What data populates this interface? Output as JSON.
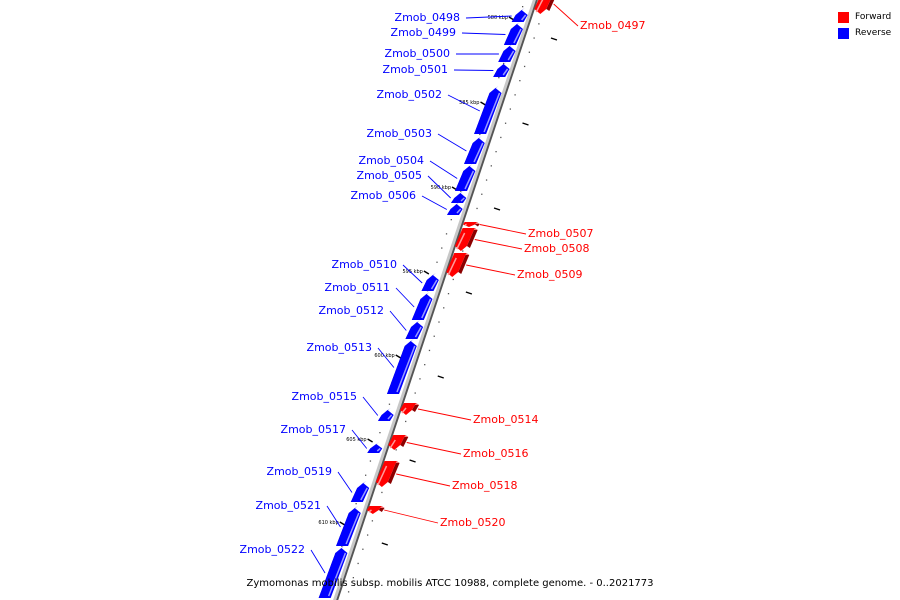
{
  "caption": "Zymomonas mobilis subsp. mobilis ATCC 10988, complete genome. - 0..2021773",
  "legend": [
    {
      "label": "Forward",
      "color": "#ff0000"
    },
    {
      "label": "Reverse",
      "color": "#0000ff"
    }
  ],
  "colors": {
    "forward": "#ff0000",
    "reverse": "#0000ff",
    "backbone": "#8c8c8c"
  },
  "ticks": [
    "580 kbp",
    "585 kbp",
    "590 kbp",
    "595 kbp",
    "600 kbp",
    "605 kbp",
    "610 kbp"
  ],
  "genes": [
    {
      "name": "Zmob_0497",
      "strand": "forward"
    },
    {
      "name": "Zmob_0498",
      "strand": "reverse"
    },
    {
      "name": "Zmob_0499",
      "strand": "reverse"
    },
    {
      "name": "Zmob_0500",
      "strand": "reverse"
    },
    {
      "name": "Zmob_0501",
      "strand": "reverse"
    },
    {
      "name": "Zmob_0502",
      "strand": "reverse"
    },
    {
      "name": "Zmob_0503",
      "strand": "reverse"
    },
    {
      "name": "Zmob_0504",
      "strand": "reverse"
    },
    {
      "name": "Zmob_0505",
      "strand": "reverse"
    },
    {
      "name": "Zmob_0506",
      "strand": "reverse"
    },
    {
      "name": "Zmob_0507",
      "strand": "forward"
    },
    {
      "name": "Zmob_0508",
      "strand": "forward"
    },
    {
      "name": "Zmob_0509",
      "strand": "forward"
    },
    {
      "name": "Zmob_0510",
      "strand": "reverse"
    },
    {
      "name": "Zmob_0511",
      "strand": "reverse"
    },
    {
      "name": "Zmob_0512",
      "strand": "reverse"
    },
    {
      "name": "Zmob_0513",
      "strand": "reverse"
    },
    {
      "name": "Zmob_0514",
      "strand": "forward"
    },
    {
      "name": "Zmob_0515",
      "strand": "reverse"
    },
    {
      "name": "Zmob_0516",
      "strand": "forward"
    },
    {
      "name": "Zmob_0517",
      "strand": "reverse"
    },
    {
      "name": "Zmob_0518",
      "strand": "forward"
    },
    {
      "name": "Zmob_0519",
      "strand": "reverse"
    },
    {
      "name": "Zmob_0520",
      "strand": "forward"
    },
    {
      "name": "Zmob_0521",
      "strand": "reverse"
    },
    {
      "name": "Zmob_0522",
      "strand": "reverse"
    }
  ]
}
